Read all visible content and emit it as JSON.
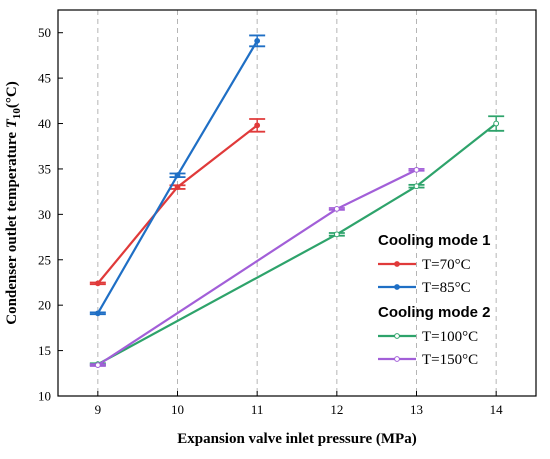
{
  "chart_data": {
    "type": "line",
    "xlabel": "Expansion valve inlet pressure (MPa)",
    "ylabel_prefix": "Condenser outlet temperature ",
    "ylabel_var": "T",
    "ylabel_sub": "10",
    "ylabel_unit": "(°C)",
    "xlim": [
      8.5,
      14.5
    ],
    "ylim": [
      10,
      52.5
    ],
    "xticks": [
      9,
      10,
      11,
      12,
      13,
      14
    ],
    "yticks": [
      10,
      15,
      20,
      25,
      30,
      35,
      40,
      45,
      50
    ],
    "grid": "vertical dashed",
    "legend_placement": "right",
    "legend_groups": [
      "Cooling mode 1",
      "Cooling mode 2"
    ],
    "series": [
      {
        "name": "T=70°C",
        "group": 0,
        "color": "#e03a3a",
        "marker": "filled",
        "x": [
          9,
          10,
          11
        ],
        "y": [
          22.4,
          33.0,
          39.8
        ],
        "err": [
          0.1,
          0.2,
          0.7
        ]
      },
      {
        "name": "T=85°C",
        "group": 0,
        "color": "#1f6fc5",
        "marker": "filled",
        "x": [
          9,
          10,
          11
        ],
        "y": [
          19.1,
          34.3,
          49.1
        ],
        "err": [
          0.1,
          0.2,
          0.6
        ]
      },
      {
        "name": "T=100°C",
        "group": 1,
        "color": "#2ea36b",
        "marker": "open",
        "x": [
          9,
          12,
          13,
          14
        ],
        "y": [
          13.5,
          27.8,
          33.1,
          40.0
        ],
        "err": [
          0.1,
          0.15,
          0.15,
          0.8
        ]
      },
      {
        "name": "T=150°C",
        "group": 1,
        "color": "#a25fd8",
        "marker": "open",
        "x": [
          9,
          12,
          13
        ],
        "y": [
          13.4,
          30.6,
          34.9
        ],
        "err": [
          0.1,
          0.1,
          0.1
        ]
      }
    ]
  }
}
